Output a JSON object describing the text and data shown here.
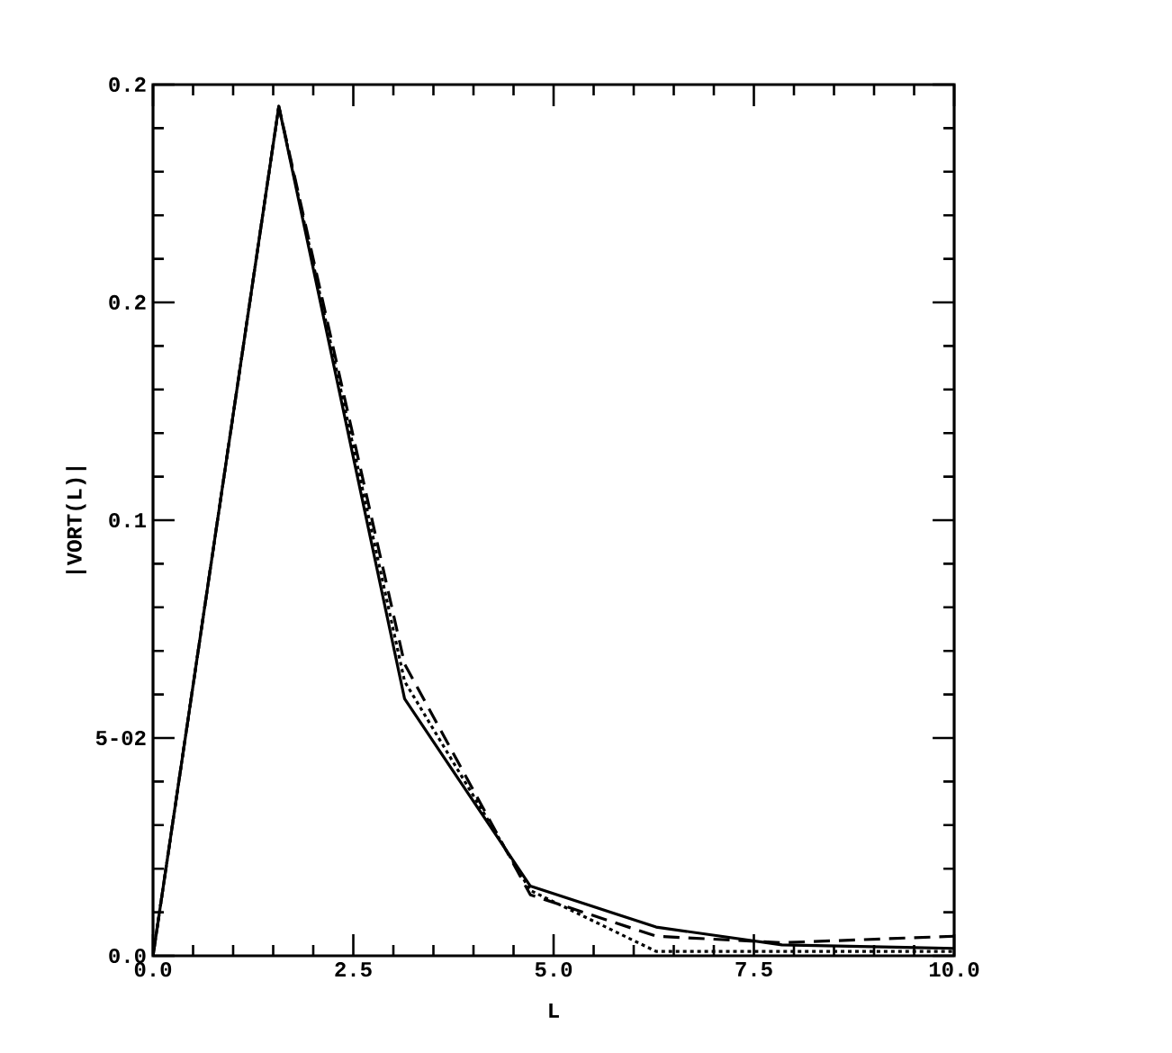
{
  "chart_data": {
    "type": "line",
    "xlabel": "L",
    "ylabel": "|VORT(L)|",
    "xlim": [
      0,
      10
    ],
    "ylim": [
      0,
      0.2
    ],
    "xticks": [
      {
        "value": 0,
        "label": "0.0"
      },
      2.5,
      {
        "value": 5,
        "label": "5.0"
      },
      7.5,
      {
        "value": 10,
        "label": "10.0"
      }
    ],
    "yticks": [
      {
        "value": 0,
        "label": "0.0"
      },
      {
        "value": 0.05,
        "label": "5-02"
      },
      0.1,
      {
        "value": 0.15,
        "label": "0.2"
      },
      0.2
    ],
    "x": [
      0,
      1.57,
      3.14,
      4.71,
      6.28,
      7.85,
      10
    ],
    "series": [
      {
        "color": "#000000",
        "line_style": "solid",
        "values": [
          0,
          0.195,
          0.059,
          0.016,
          0.0066,
          0.0025,
          0.0017
        ]
      },
      {
        "color": "#000000",
        "line_style": "dashed",
        "values": [
          0,
          0.195,
          0.067,
          0.014,
          0.0045,
          0.003,
          0.0045
        ]
      },
      {
        "color": "#000000",
        "line_style": "dotted",
        "values": [
          0,
          0.195,
          0.063,
          0.015,
          0.001,
          0.001,
          0.001
        ]
      }
    ]
  }
}
